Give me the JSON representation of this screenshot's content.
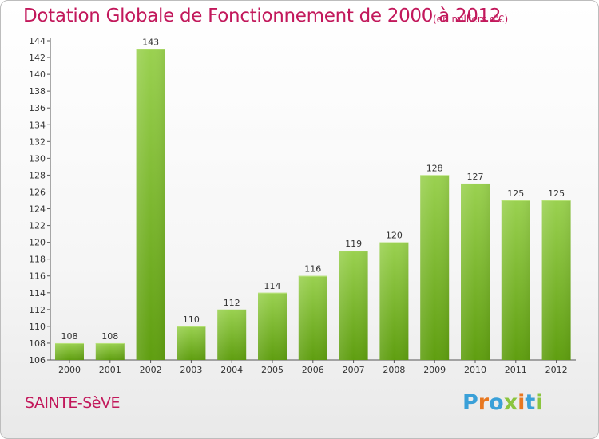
{
  "chart_data": {
    "type": "bar",
    "title": "Dotation Globale de Fonctionnement de 2000 à 2012",
    "subtitle": "(en milliers d'€)",
    "categories": [
      "2000",
      "2001",
      "2002",
      "2003",
      "2004",
      "2005",
      "2006",
      "2007",
      "2008",
      "2009",
      "2010",
      "2011",
      "2012"
    ],
    "values": [
      108,
      108,
      143,
      110,
      112,
      114,
      116,
      119,
      120,
      128,
      127,
      125,
      125
    ],
    "data_labels": [
      "108",
      "108",
      "143",
      "110",
      "112",
      "114",
      "116",
      "119",
      "120",
      "128",
      "127",
      "125",
      "125"
    ],
    "ylim": [
      106,
      144
    ],
    "yticks": [
      106,
      108,
      110,
      112,
      114,
      116,
      118,
      120,
      122,
      124,
      126,
      128,
      130,
      132,
      134,
      136,
      138,
      140,
      142,
      144
    ],
    "bar_color": "#7dc12b",
    "grid": false
  },
  "footer": {
    "city": "SAINTE-SèVE",
    "logo": "Proxiti",
    "logo_colors": [
      "#3aa0d8",
      "#e8771f",
      "#3aa0d8",
      "#8bc53f",
      "#e8771f",
      "#3aa0d8",
      "#8bc53f"
    ]
  }
}
